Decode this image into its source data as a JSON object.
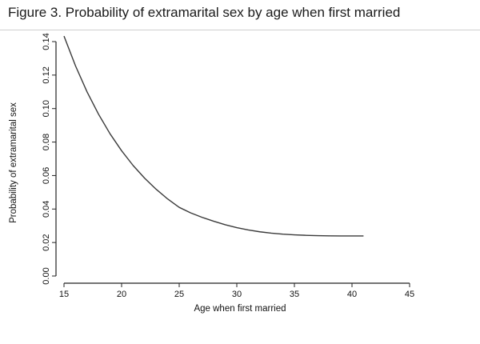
{
  "figure": {
    "title": "Figure 3. Probability of extramarital sex by age when first married"
  },
  "chart_data": {
    "type": "line",
    "title": "Figure 3. Probability of extramarital sex by age when first married",
    "xlabel": "Age when first married",
    "ylabel": "Probability of extramarital sex",
    "xlim": [
      15,
      45
    ],
    "ylim": [
      0,
      0.14
    ],
    "xticks": [
      "15",
      "20",
      "25",
      "30",
      "35",
      "40",
      "45"
    ],
    "yticks": [
      "0.00",
      "0.02",
      "0.04",
      "0.06",
      "0.08",
      "0.10",
      "0.12",
      "0.14"
    ],
    "grid": false,
    "series": [
      {
        "x": [
          15.0,
          16,
          17,
          18,
          19,
          20,
          21,
          22,
          23,
          24,
          25,
          26,
          27,
          28,
          29,
          30,
          31,
          32,
          33,
          34,
          35,
          36,
          37,
          38,
          39,
          40,
          41
        ],
        "y": [
          0.1433,
          0.1255,
          0.11,
          0.0966,
          0.0849,
          0.0748,
          0.066,
          0.0584,
          0.0518,
          0.046,
          0.041,
          0.0377,
          0.035,
          0.0327,
          0.0306,
          0.0289,
          0.0275,
          0.0264,
          0.0256,
          0.025,
          0.0246,
          0.0243,
          0.0241,
          0.024,
          0.0239,
          0.0239,
          0.0239
        ]
      }
    ],
    "colors": {
      "line": "#3a3a3a",
      "axis": "#222222"
    }
  }
}
